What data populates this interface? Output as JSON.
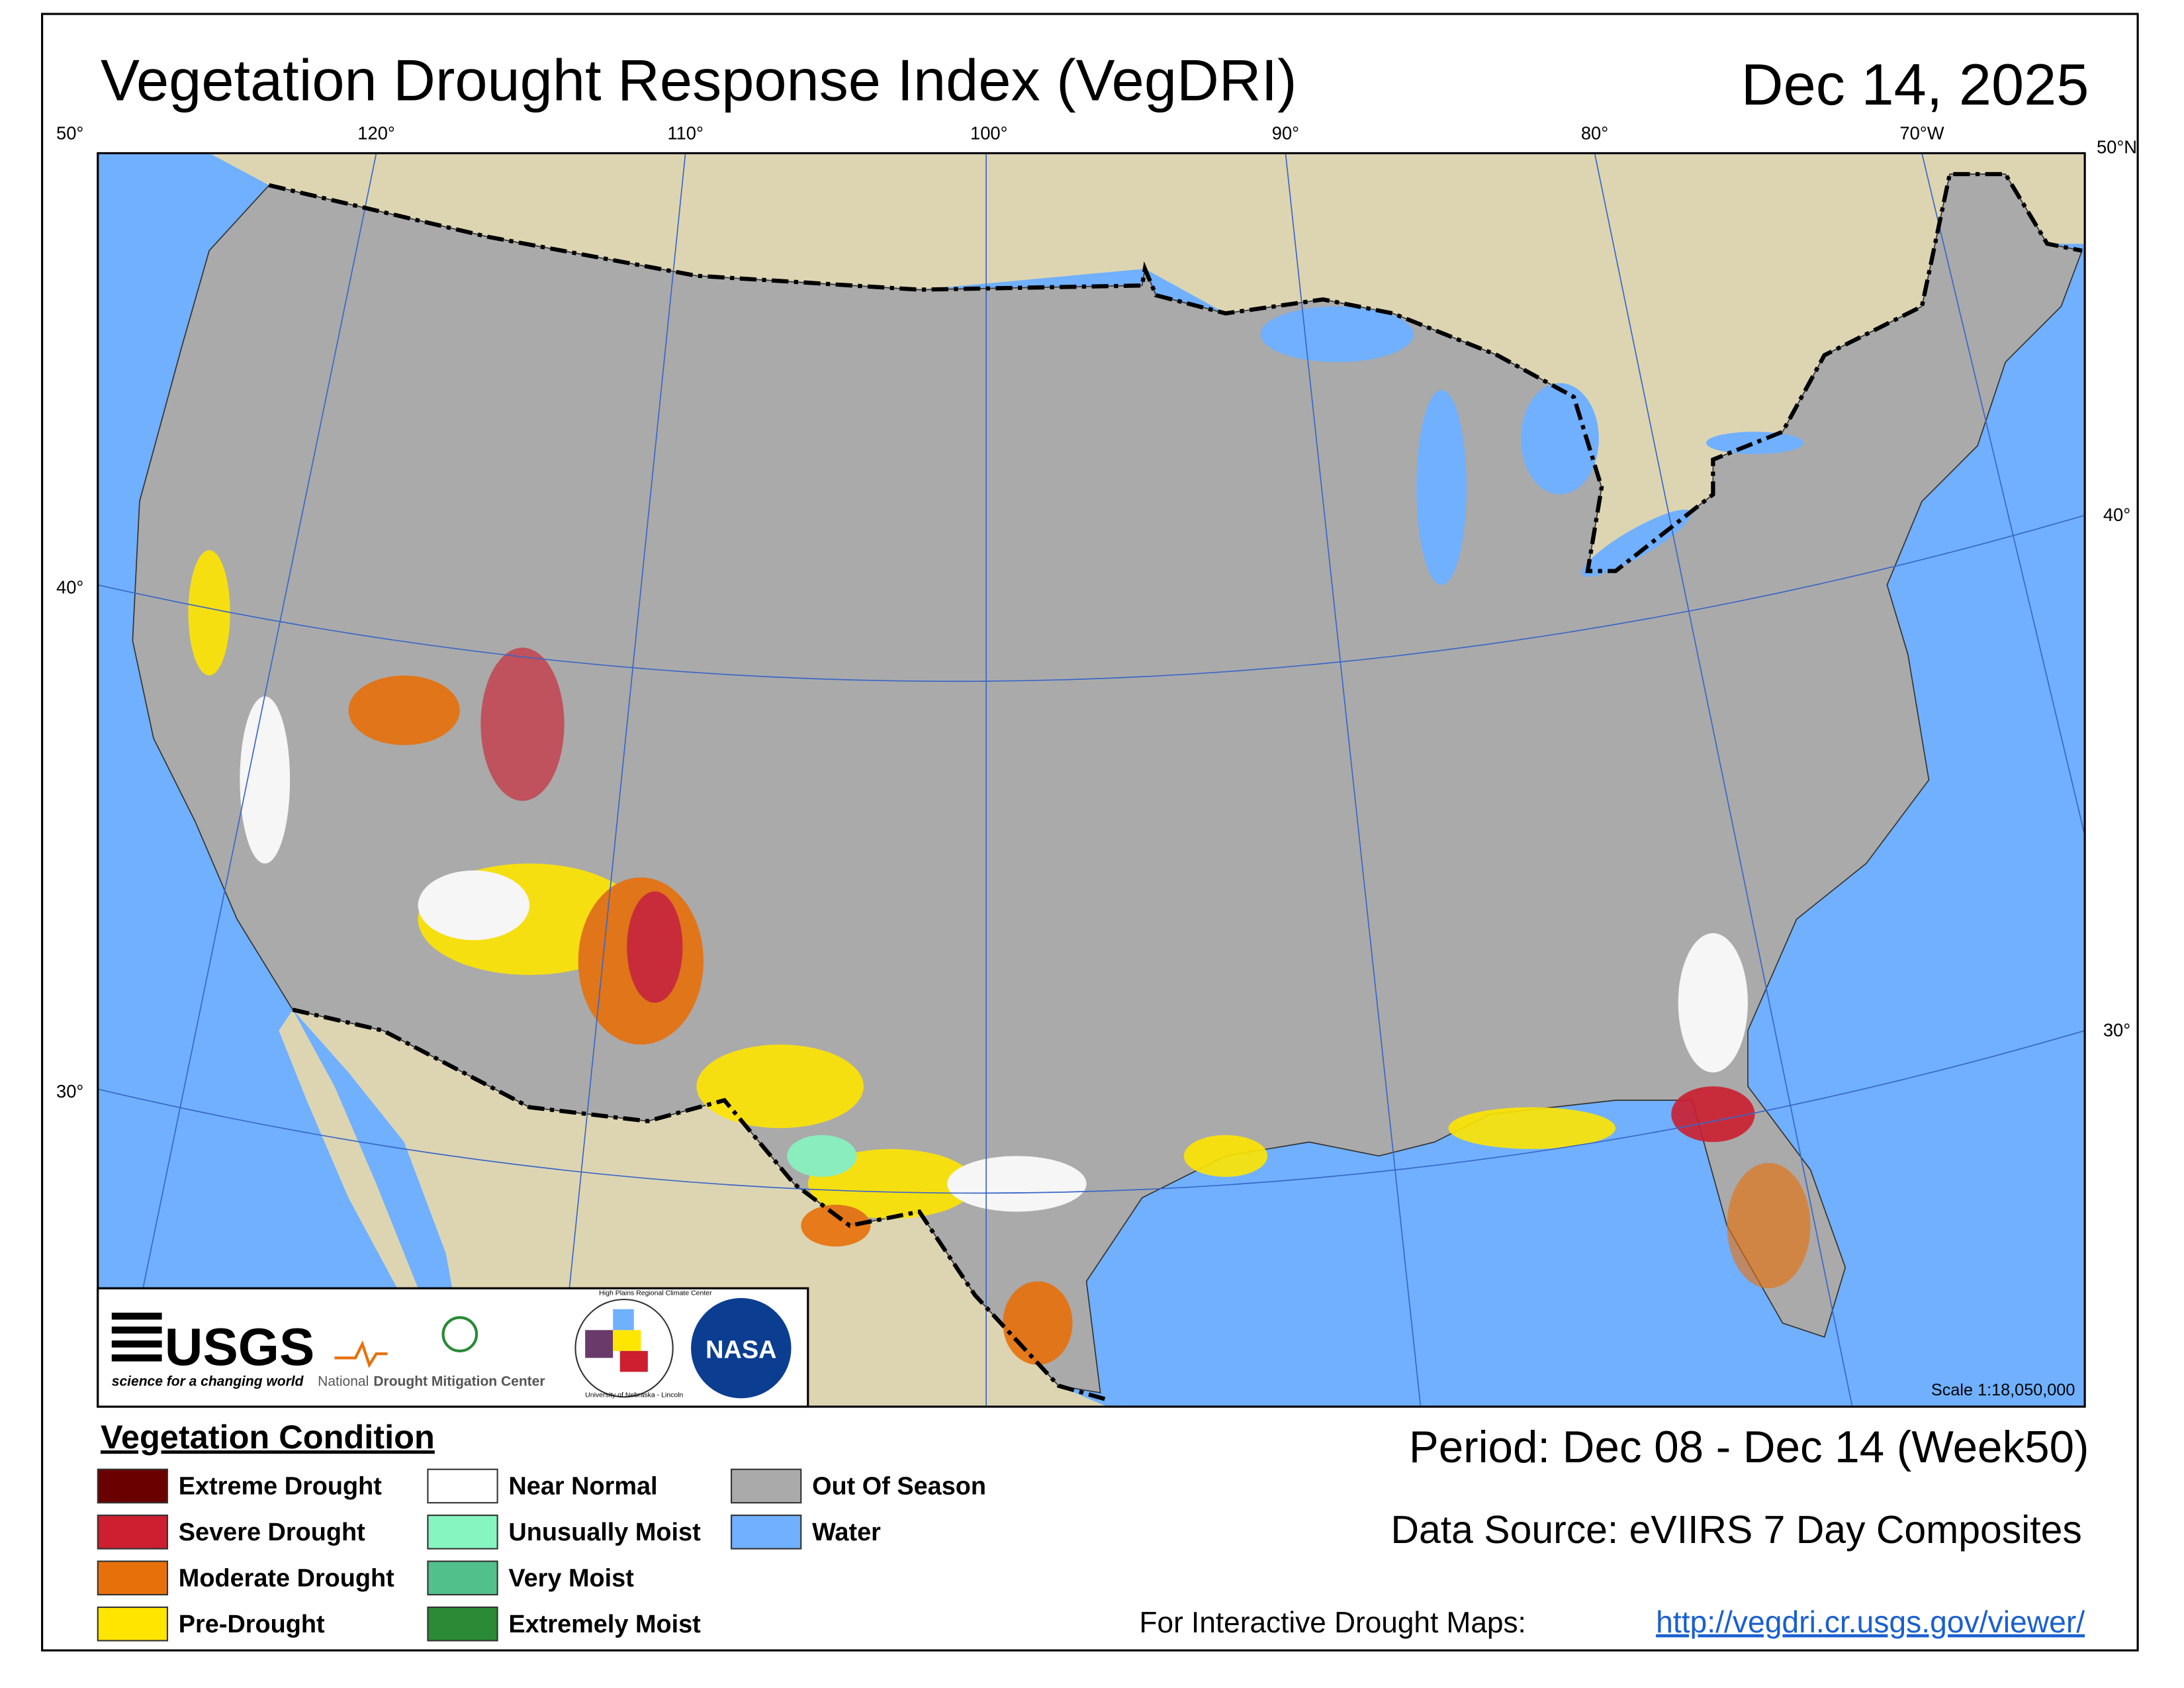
{
  "title": "Vegetation Drought Response Index (VegDRI)",
  "date": "Dec 14, 2025",
  "graticule_labels": [
    "50°",
    "120°",
    "110°",
    "100°",
    "90°",
    "80°",
    "70°W",
    "50°N",
    "40°",
    "30°",
    "40°",
    "30°"
  ],
  "legend": {
    "title": "Vegetation Condition",
    "items": [
      {
        "label": "Extreme Drought",
        "color": "#6b0000"
      },
      {
        "label": "Severe Drought",
        "color": "#cc1f2f"
      },
      {
        "label": "Moderate Drought",
        "color": "#e8700a"
      },
      {
        "label": "Pre-Drought",
        "color": "#ffe600"
      },
      {
        "label": "Near Normal",
        "color": "#ffffff"
      },
      {
        "label": "Unusually Moist",
        "color": "#87f5c0"
      },
      {
        "label": "Very Moist",
        "color": "#52c08a"
      },
      {
        "label": "Extremely Moist",
        "color": "#2a8a35"
      },
      {
        "label": "Out Of Season",
        "color": "#aaaaaa"
      },
      {
        "label": "Water",
        "color": "#70b0ff"
      }
    ]
  },
  "period": "Period:  Dec 08 - Dec 14 (Week50)",
  "data_source": "Data Source:  eVIIRS 7 Day Composites",
  "interactive_label": "For Interactive Drought Maps:",
  "url": "http://vegdri.cr.usgs.gov/viewer/",
  "scale": "Scale 1:18,050,000",
  "logos": {
    "usgs": "USGS",
    "usgs_tagline": "science for a changing world",
    "ndmc_prefix": "National",
    "ndmc": "Drought Mitigation Center",
    "hprcc": "High Plains Regional Climate Center",
    "unl": "University of Nebraska - Lincoln",
    "nasa": "NASA"
  }
}
